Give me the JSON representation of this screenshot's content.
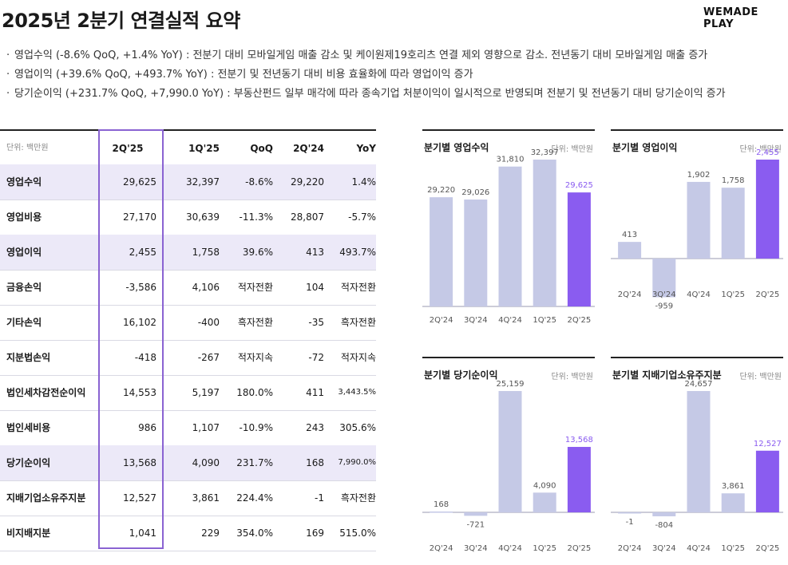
{
  "header": {
    "title": "2025년 2분기 연결실적 요약",
    "logo": "WEMADE PLAY"
  },
  "bullets": [
    "영업수익 (-8.6% QoQ, +1.4% YoY) : 전분기 대비 모바일게임 매출 감소 및 케이원제19호리츠 연결 제외 영향으로 감소. 전년동기 대비 모바일게임 매출 증가",
    "영업이익 (+39.6% QoQ, +493.7% YoY) : 전분기 및 전년동기 대비 비용 효율화에 따라 영업이익 증가",
    "당기순이익 (+231.7% QoQ, +7,990.0 YoY) : 부동산펀드 일부 매각에 따라 종속기업 처분이익이 일시적으로 반영되며 전분기 및 전년동기 대비 당기순이익 증가"
  ],
  "table": {
    "unit": "단위: 백만원",
    "columns": [
      "2Q'25",
      "1Q'25",
      "QoQ",
      "2Q'24",
      "YoY"
    ],
    "rows": [
      {
        "label": "영업수익",
        "values": [
          "29,625",
          "32,397",
          "-8.6%",
          "29,220",
          "1.4%"
        ],
        "highlight": true
      },
      {
        "label": "영업비용",
        "values": [
          "27,170",
          "30,639",
          "-11.3%",
          "28,807",
          "-5.7%"
        ],
        "highlight": false
      },
      {
        "label": "영업이익",
        "values": [
          "2,455",
          "1,758",
          "39.6%",
          "413",
          "493.7%"
        ],
        "highlight": true
      },
      {
        "label": "금융손익",
        "values": [
          "-3,586",
          "4,106",
          "적자전환",
          "104",
          "적자전환"
        ],
        "highlight": false
      },
      {
        "label": "기타손익",
        "values": [
          "16,102",
          "-400",
          "흑자전환",
          "-35",
          "흑자전환"
        ],
        "highlight": false
      },
      {
        "label": "지분법손익",
        "values": [
          "-418",
          "-267",
          "적자지속",
          "-72",
          "적자지속"
        ],
        "highlight": false
      },
      {
        "label": "법인세차감전순이익",
        "values": [
          "14,553",
          "5,197",
          "180.0%",
          "411",
          "3,443.5%"
        ],
        "highlight": false
      },
      {
        "label": "법인세비용",
        "values": [
          "986",
          "1,107",
          "-10.9%",
          "243",
          "305.6%"
        ],
        "highlight": false
      },
      {
        "label": "당기순이익",
        "values": [
          "13,568",
          "4,090",
          "231.7%",
          "168",
          "7,990.0%"
        ],
        "highlight": true
      },
      {
        "label": "지배기업소유주지분",
        "values": [
          "12,527",
          "3,861",
          "224.4%",
          "-1",
          "흑자전환"
        ],
        "highlight": false
      },
      {
        "label": "비지배지분",
        "values": [
          "1,041",
          "229",
          "354.0%",
          "169",
          "515.0%"
        ],
        "highlight": false
      }
    ]
  },
  "colors": {
    "bar_past": "#c5c9e6",
    "bar_current": "#8a5cf0",
    "label_current": "#8a5cf0",
    "highlight_row": "#ece9f8",
    "column_frame": "#8a63d2"
  },
  "chart_data": [
    {
      "type": "bar",
      "title": "분기별 영업수익",
      "unit": "단위: 백만원",
      "categories": [
        "2Q'24",
        "3Q'24",
        "4Q'24",
        "1Q'25",
        "2Q'25"
      ],
      "values": [
        29220,
        29026,
        31810,
        32397,
        29625
      ],
      "labels": [
        "29,220",
        "29,026",
        "31,810",
        "32,397",
        "29,625"
      ],
      "ylim": [
        20000,
        34000
      ]
    },
    {
      "type": "bar",
      "title": "분기별 영업이익",
      "unit": "단위: 백만원",
      "categories": [
        "2Q'24",
        "3Q'24",
        "4Q'24",
        "1Q'25",
        "2Q'25"
      ],
      "values": [
        413,
        -959,
        1902,
        1758,
        2455
      ],
      "labels": [
        "413",
        "-959",
        "1,902",
        "1,758",
        "2,455"
      ],
      "ylim": [
        -1300,
        2900
      ]
    },
    {
      "type": "bar",
      "title": "분기별 당기순이익",
      "unit": "단위: 백만원",
      "categories": [
        "2Q'24",
        "3Q'24",
        "4Q'24",
        "1Q'25",
        "2Q'25"
      ],
      "values": [
        168,
        -721,
        25159,
        4090,
        13568
      ],
      "labels": [
        "168",
        "-721",
        "25,159",
        "4,090",
        "13,568"
      ],
      "ylim": [
        -2000,
        29000
      ]
    },
    {
      "type": "bar",
      "title": "분기별 지배기업소유주지분",
      "unit": "단위: 백만원",
      "categories": [
        "2Q'24",
        "3Q'24",
        "4Q'24",
        "1Q'25",
        "2Q'25"
      ],
      "values": [
        -1,
        -804,
        24657,
        3861,
        12527
      ],
      "labels": [
        "-1",
        "-804",
        "24,657",
        "3,861",
        "12,527"
      ],
      "ylim": [
        -2000,
        29000
      ]
    }
  ]
}
